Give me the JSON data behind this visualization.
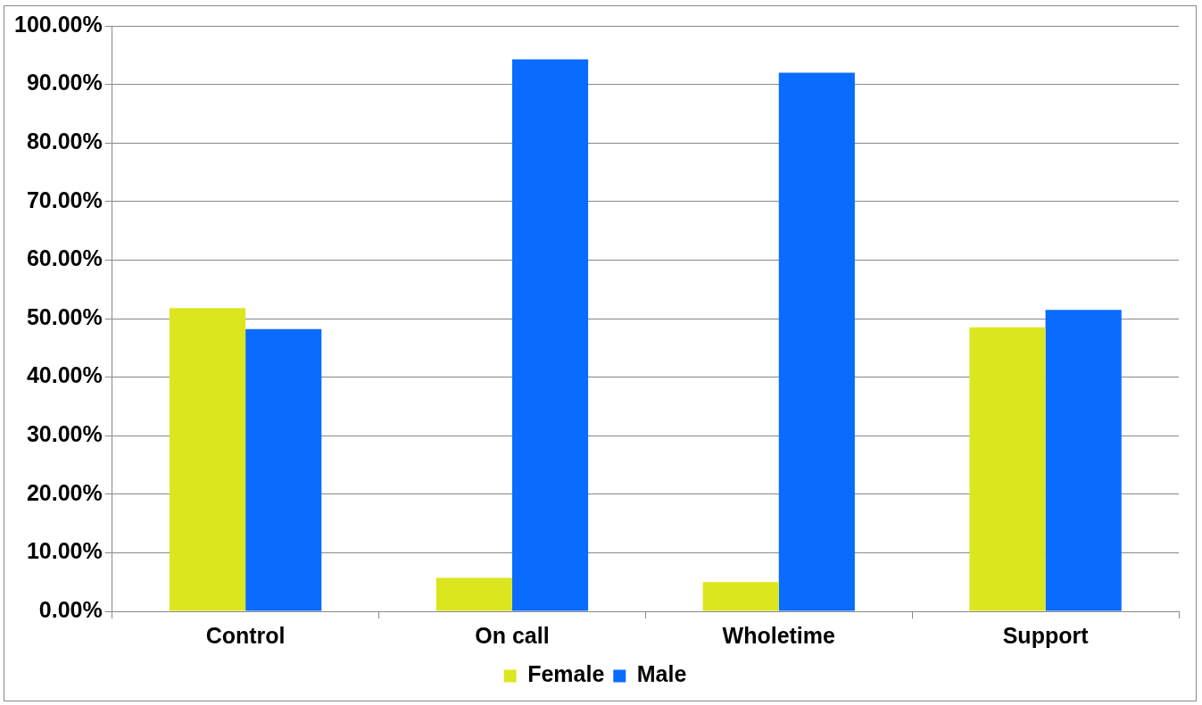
{
  "chart_data": {
    "type": "bar",
    "categories": [
      "Control",
      "On call",
      "Wholetime",
      "Support"
    ],
    "series": [
      {
        "name": "Female",
        "color": "#dce61e",
        "values": [
          51.8,
          5.7,
          5.0,
          48.5
        ]
      },
      {
        "name": "Male",
        "color": "#0a6cff",
        "values": [
          48.2,
          94.3,
          92.0,
          51.5
        ]
      }
    ],
    "ylim": [
      0,
      100
    ],
    "yticks": [
      {
        "value": 0,
        "label": "0.00%"
      },
      {
        "value": 10,
        "label": "10.00%"
      },
      {
        "value": 20,
        "label": "20.00%"
      },
      {
        "value": 30,
        "label": "30.00%"
      },
      {
        "value": 40,
        "label": "40.00%"
      },
      {
        "value": 50,
        "label": "50.00%"
      },
      {
        "value": 60,
        "label": "60.00%"
      },
      {
        "value": 70,
        "label": "70.00%"
      },
      {
        "value": 80,
        "label": "80.00%"
      },
      {
        "value": 90,
        "label": "90.00%"
      },
      {
        "value": 100,
        "label": "100.00%"
      }
    ],
    "grid": "y",
    "legend": "bottom"
  }
}
